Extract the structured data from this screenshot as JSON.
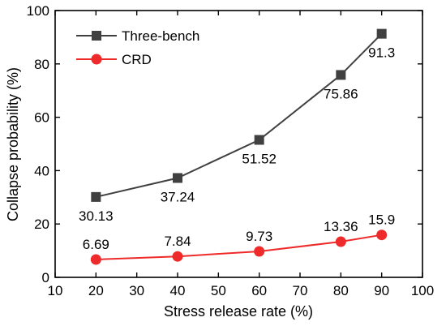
{
  "chart_data": {
    "type": "line",
    "xlabel": "Stress release rate (%)",
    "ylabel": "Collapse probability (%)",
    "xlim": [
      10,
      100
    ],
    "ylim": [
      0,
      100
    ],
    "xticks": [
      10,
      20,
      30,
      40,
      50,
      60,
      70,
      80,
      90,
      100
    ],
    "yticks": [
      0,
      20,
      40,
      60,
      80,
      100
    ],
    "grid": false,
    "legend_position": "top-left",
    "x": [
      20,
      40,
      60,
      80,
      90
    ],
    "series": [
      {
        "name": "Three-bench",
        "marker": "square",
        "color": "#404040",
        "values": [
          30.13,
          37.24,
          51.52,
          75.86,
          91.3
        ],
        "labels": [
          "30.13",
          "37.24",
          "51.52",
          "75.86",
          "91.3"
        ],
        "label_position": [
          "below",
          "below",
          "below",
          "below",
          "below"
        ]
      },
      {
        "name": "CRD",
        "marker": "circle",
        "color": "#ee2a2a",
        "values": [
          6.69,
          7.84,
          9.73,
          13.36,
          15.9
        ],
        "labels": [
          "6.69",
          "7.84",
          "9.73",
          "13.36",
          "15.9"
        ],
        "label_position": [
          "above",
          "above",
          "above",
          "above",
          "above"
        ]
      }
    ]
  }
}
